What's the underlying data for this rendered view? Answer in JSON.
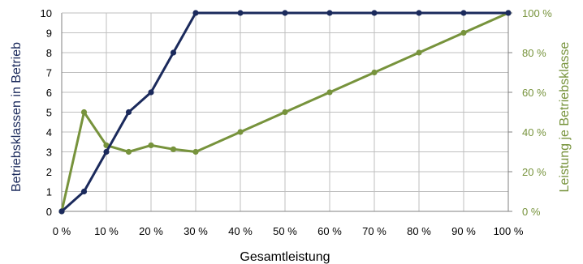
{
  "colors": {
    "left_series": "#1b2a5c",
    "right_series": "#77933c",
    "grid": "#bfbfbf",
    "axis": "#808080",
    "text": "#000000"
  },
  "chart_data": {
    "type": "line",
    "title": "",
    "xlabel": "Gesamtleistung",
    "ylabel_left": "Betriebsklassen in Betrieb",
    "ylabel_right": "Leistung je Betriebsklasse",
    "x": [
      0,
      5,
      10,
      15,
      20,
      25,
      30,
      40,
      50,
      60,
      70,
      80,
      90,
      100
    ],
    "x_tick_values": [
      0,
      10,
      20,
      30,
      40,
      50,
      60,
      70,
      80,
      90,
      100
    ],
    "x_tick_labels": [
      "0 %",
      "10 %",
      "20 %",
      "30 %",
      "40 %",
      "50 %",
      "60 %",
      "70 %",
      "80 %",
      "90 %",
      "100 %"
    ],
    "xlim": [
      0,
      100
    ],
    "ylim_left": [
      0,
      10
    ],
    "y_left_tick_labels": [
      "0",
      "1",
      "2",
      "3",
      "4",
      "5",
      "6",
      "7",
      "8",
      "9",
      "10"
    ],
    "ylim_right": [
      0,
      100
    ],
    "y_right_tick_values": [
      0,
      20,
      40,
      60,
      80,
      100
    ],
    "y_right_tick_labels": [
      "0 %",
      "20 %",
      "40 %",
      "60 %",
      "80 %",
      "100 %"
    ],
    "grid": true,
    "series": [
      {
        "axis": "left",
        "values": [
          0,
          1,
          3,
          5,
          6,
          8,
          10,
          10,
          10,
          10,
          10,
          10,
          10,
          10
        ]
      },
      {
        "axis": "right",
        "values": [
          0,
          50,
          33.3,
          30,
          33.3,
          31.3,
          30,
          40,
          50,
          60,
          70,
          80,
          90,
          100
        ]
      }
    ]
  }
}
